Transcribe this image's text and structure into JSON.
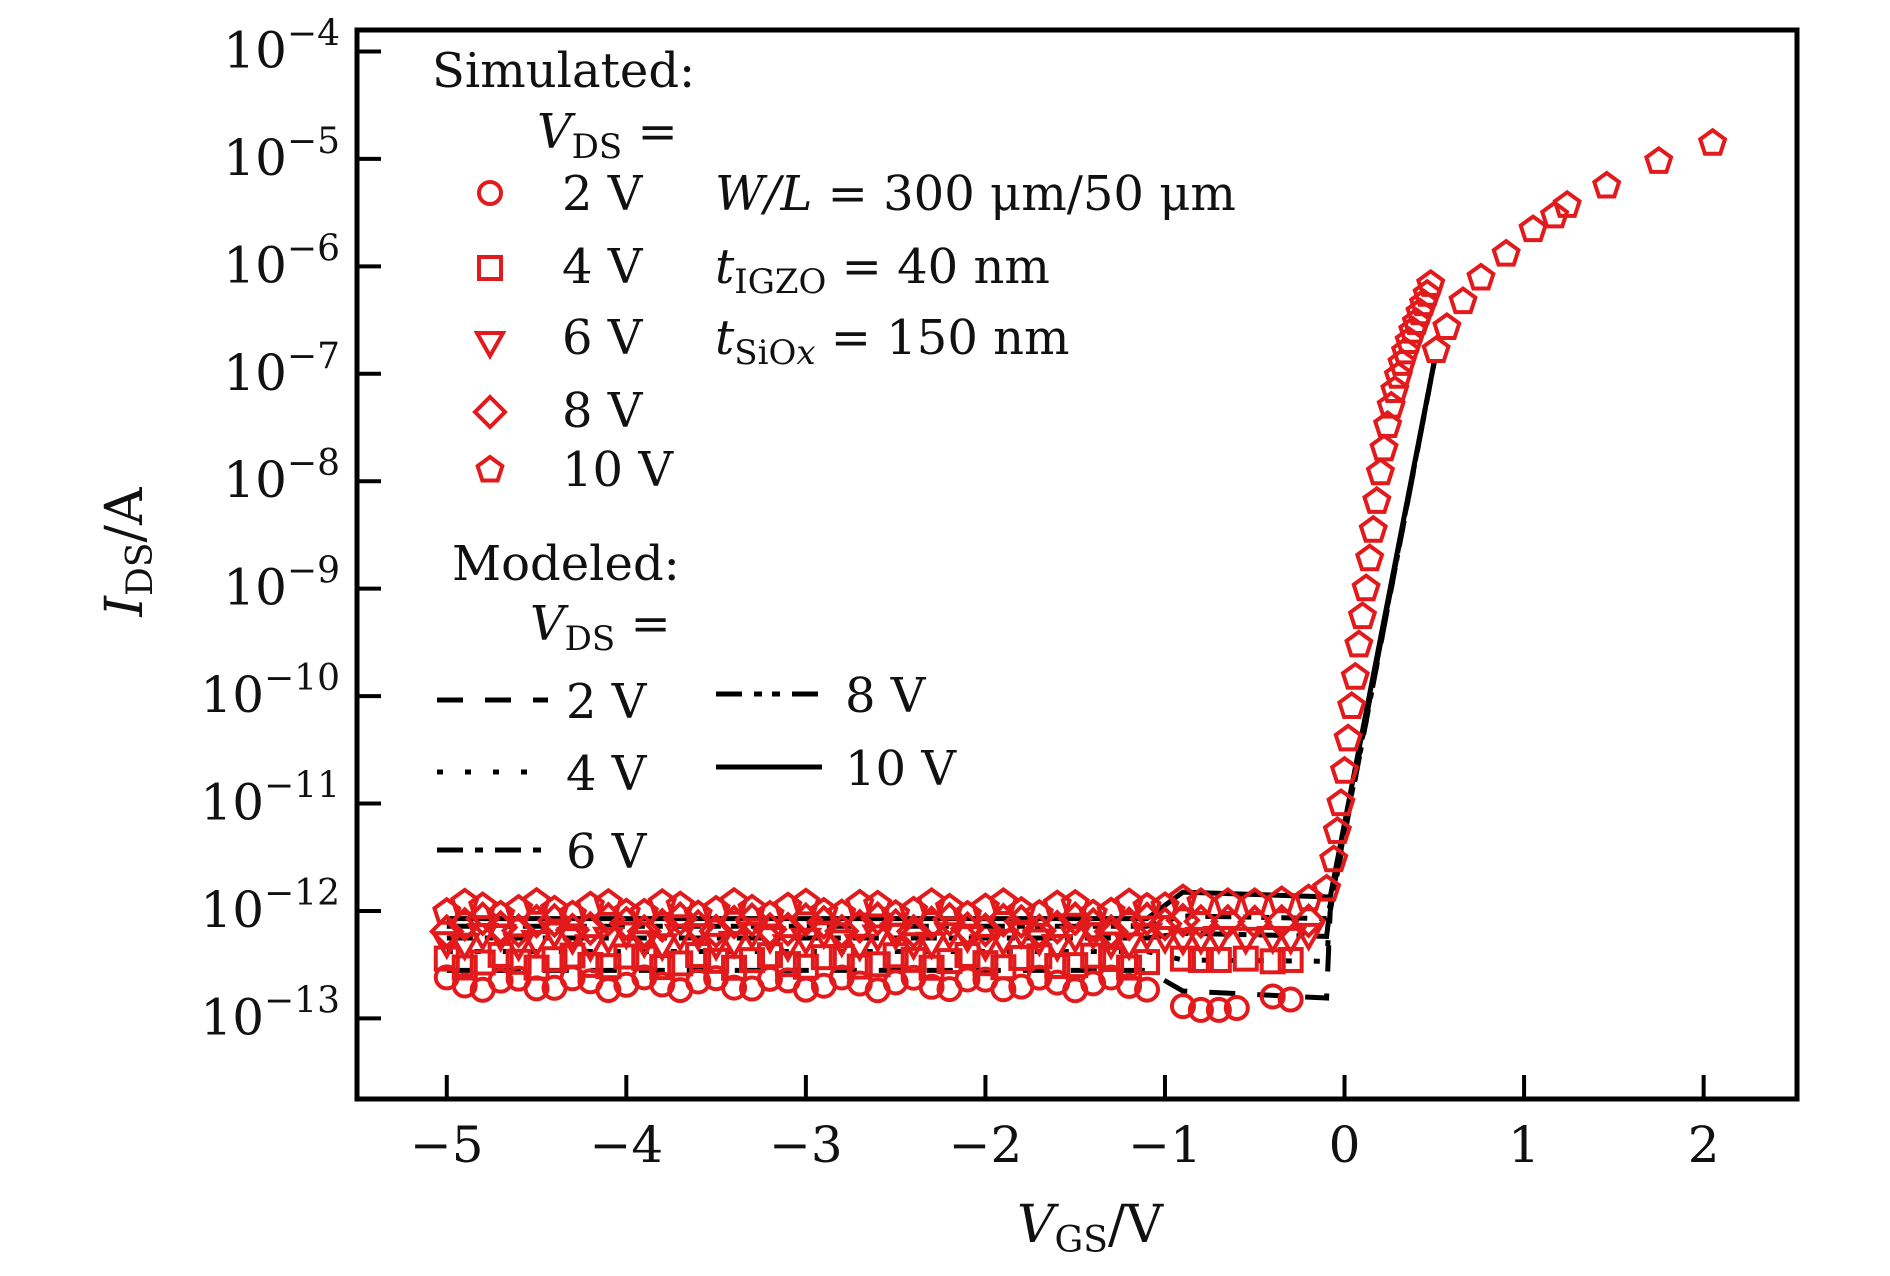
{
  "chart_data": {
    "type": "scatter",
    "title": "",
    "xlabel": {
      "main": "V",
      "sub": "GS",
      "unit": "/V"
    },
    "ylabel": {
      "main": "I",
      "sub": "DS",
      "unit": "/A"
    },
    "xlim": [
      -5.5,
      2.52
    ],
    "ylim_log10": [
      -13.75,
      -3.8
    ],
    "yscale": "log",
    "grid": false,
    "x_ticks": [
      -5,
      -4,
      -3,
      -2,
      -1,
      0,
      1,
      2
    ],
    "x_tick_labels": [
      "−5",
      "−4",
      "−3",
      "−2",
      "−1",
      "0",
      "1",
      "2"
    ],
    "y_ticks_log10": [
      -4,
      -5,
      -6,
      -7,
      -8,
      -9,
      -10,
      -11,
      -12,
      -13
    ],
    "y_tick_labels": [
      {
        "base": "10",
        "exp": "−4"
      },
      {
        "base": "10",
        "exp": "−5"
      },
      {
        "base": "10",
        "exp": "−6"
      },
      {
        "base": "10",
        "exp": "−7"
      },
      {
        "base": "10",
        "exp": "−8"
      },
      {
        "base": "10",
        "exp": "−9"
      },
      {
        "base": "10",
        "exp": "−10"
      },
      {
        "base": "10",
        "exp": "−11"
      },
      {
        "base": "10",
        "exp": "−12"
      },
      {
        "base": "10",
        "exp": "−13"
      }
    ],
    "colors": {
      "simulated": "#e31a1c",
      "modeled": "#000000",
      "frame": "#000000"
    },
    "legend": {
      "position": "top-left",
      "simulated_title": "Simulated:",
      "modeled_title": "Modeled:",
      "vds_label": {
        "main": "V",
        "sub": "DS",
        "eq": " ="
      },
      "simulated_entries": [
        {
          "marker": "circle",
          "label": "2 V"
        },
        {
          "marker": "square",
          "label": "4 V"
        },
        {
          "marker": "triangle-down",
          "label": "6 V"
        },
        {
          "marker": "diamond",
          "label": "8 V"
        },
        {
          "marker": "pentagon",
          "label": "10 V"
        }
      ],
      "modeled_entries": [
        {
          "style": "dashed",
          "label": "2 V"
        },
        {
          "style": "dotted",
          "label": "4 V"
        },
        {
          "style": "dash-dot",
          "label": "6 V"
        },
        {
          "style": "dash-dot-dot",
          "label": "8 V"
        },
        {
          "style": "solid",
          "label": "10 V"
        }
      ]
    },
    "annotations": [
      {
        "main": "W/L",
        "rest": " = 300 μm/50 μm"
      },
      {
        "main": "t",
        "sub": "IGZO",
        "rest": " = 40 nm"
      },
      {
        "main": "t",
        "sub": "SiO",
        "subx": "x",
        "rest": " = 150 nm"
      }
    ],
    "simulated_series": [
      {
        "name": "Simulated VDS = 2 V",
        "marker": "circle",
        "off_level_A": 2.1e-13,
        "off_range_V": [
          -5.0,
          -1.1
        ],
        "x": [
          -0.9,
          -0.8,
          -0.7,
          -0.6,
          -0.4,
          -0.3
        ],
        "y": [
          1.3e-13,
          1.2e-13,
          1.2e-13,
          1.25e-13,
          1.6e-13,
          1.5e-13
        ]
      },
      {
        "name": "Simulated VDS = 4 V",
        "marker": "square",
        "off_level_A": 3.4e-13,
        "off_range_V": [
          -5.0,
          -1.1
        ],
        "x": [
          -0.9,
          -0.8,
          -0.7,
          -0.55,
          -0.4,
          -0.3
        ],
        "y": [
          3.6e-13,
          3.5e-13,
          3.5e-13,
          3.6e-13,
          3.4e-13,
          3.5e-13
        ]
      },
      {
        "name": "Simulated VDS = 6 V",
        "marker": "triangle-down",
        "off_level_A": 5.4e-13,
        "off_range_V": [
          -5.0,
          -1.1
        ],
        "x": [
          -1.0,
          -0.9,
          -0.8,
          -0.7,
          -0.55,
          -0.4,
          -0.3,
          -0.2
        ],
        "y": [
          5.6e-13,
          5.4e-13,
          5.5e-13,
          5.6e-13,
          5.5e-13,
          5.6e-13,
          5.5e-13,
          6e-13
        ]
      },
      {
        "name": "Simulated VDS = 8 V",
        "marker": "diamond",
        "off_level_A": 7.4e-13,
        "off_range_V": [
          -5.0,
          -1.1
        ],
        "x": [
          -1.0,
          -0.9,
          -0.8,
          -0.65,
          -0.5,
          -0.35,
          -0.2
        ],
        "y": [
          7.6e-13,
          8.2e-13,
          8e-13,
          8e-13,
          7.9e-13,
          8e-13,
          8.1e-13
        ]
      },
      {
        "name": "Simulated VDS = 10 V",
        "marker": "pentagon",
        "off_level_A": 1.05e-12,
        "off_range_V": [
          -5.0,
          -1.1
        ],
        "x": [
          -1.0,
          -0.9,
          -0.8,
          -0.65,
          -0.5,
          -0.35,
          -0.2,
          -0.1,
          -0.06,
          -0.04,
          -0.02,
          0.0,
          0.02,
          0.04,
          0.06,
          0.08,
          0.1,
          0.12,
          0.14,
          0.16,
          0.18,
          0.2,
          0.22,
          0.24,
          0.26,
          0.28,
          0.3,
          0.32,
          0.34,
          0.36,
          0.38,
          0.4,
          0.42,
          0.44,
          0.46,
          0.48,
          0.51,
          0.57,
          0.66,
          0.76,
          0.9,
          1.05,
          1.17,
          1.24,
          1.46,
          1.75,
          2.05
        ],
        "y": [
          1.1e-12,
          1.3e-12,
          1.2e-12,
          1.2e-12,
          1.2e-12,
          1.25e-12,
          1.3e-12,
          1.6e-12,
          3e-12,
          5.5e-12,
          1e-11,
          2e-11,
          4e-11,
          8e-11,
          1.5e-10,
          3e-10,
          5.5e-10,
          1e-09,
          1.9e-09,
          3.5e-09,
          6.5e-09,
          1.2e-08,
          2e-08,
          3.3e-08,
          5e-08,
          7e-08,
          9.5e-08,
          1.25e-07,
          1.6e-07,
          2e-07,
          2.5e-07,
          3e-07,
          3.7e-07,
          4.5e-07,
          5.5e-07,
          6.8e-07,
          1.65e-07,
          2.7e-07,
          4.7e-07,
          7.8e-07,
          1.3e-06,
          2.2e-06,
          2.95e-06,
          3.7e-06,
          5.6e-06,
          9.5e-06,
          1.4e-05
        ]
      }
    ],
    "modeled_series": [
      {
        "name": "Modeled VDS = 2 V",
        "style": "dashed",
        "x": [
          -5.0,
          -1.1,
          -0.9,
          -0.1,
          -0.08,
          0.5
        ],
        "y": [
          2.8e-13,
          2.8e-13,
          1.8e-13,
          1.55e-13,
          1e-12,
          1.3e-07
        ]
      },
      {
        "name": "Modeled VDS = 4 V",
        "style": "dotted",
        "x": [
          -5.0,
          -1.1,
          -0.9,
          -0.1,
          -0.08,
          0.5
        ],
        "y": [
          4.2e-13,
          4.2e-13,
          3.5e-13,
          3.4e-13,
          1e-12,
          1.3e-07
        ]
      },
      {
        "name": "Modeled VDS = 6 V",
        "style": "dash-dot",
        "x": [
          -5.0,
          -1.1,
          -0.9,
          -0.1,
          -0.08,
          0.5
        ],
        "y": [
          5.6e-13,
          5.6e-13,
          6.2e-13,
          5.8e-13,
          1.1e-12,
          1.3e-07
        ]
      },
      {
        "name": "Modeled VDS = 8 V",
        "style": "dash-dot-dot",
        "x": [
          -5.0,
          -1.1,
          -0.9,
          -0.1,
          -0.08,
          0.5
        ],
        "y": [
          7.2e-13,
          7.2e-13,
          9e-13,
          8.5e-13,
          1.15e-12,
          1.3e-07
        ]
      },
      {
        "name": "Modeled VDS = 10 V",
        "style": "solid",
        "x": [
          -5.0,
          -1.1,
          -0.9,
          -0.08,
          0.5
        ],
        "y": [
          8.5e-13,
          8.5e-13,
          1.5e-12,
          1.35e-12,
          1.3e-07
        ]
      }
    ]
  }
}
